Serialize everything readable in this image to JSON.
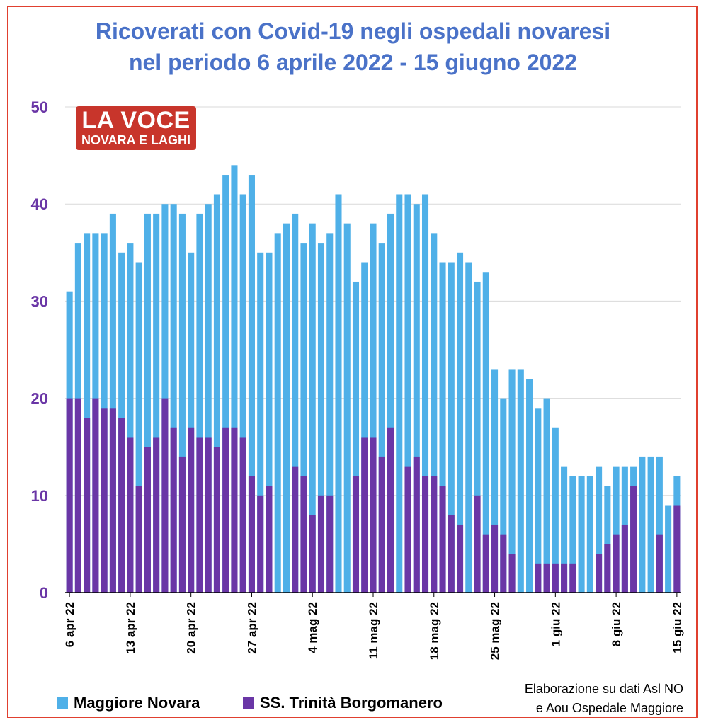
{
  "title_line1": "Ricoverati con Covid-19 negli ospedali novaresi",
  "title_line2": "nel periodo 6 aprile 2022 - 15 giugno 2022",
  "logo": {
    "line1": "LA VOCE",
    "line2": "NOVARA E LAGHI"
  },
  "source_line1": "Elaborazione su dati Asl NO",
  "source_line2": "e Aou Ospedale Maggiore",
  "colors": {
    "maggiore": "#4fb0e8",
    "trinita": "#6a36a6",
    "axis": "#6a36a6",
    "grid": "#d9d9d9"
  },
  "chart_data": {
    "type": "bar",
    "title": "Ricoverati con Covid-19 negli ospedali novaresi nel periodo 6 aprile 2022 - 15 giugno 2022",
    "ylim": [
      0,
      50
    ],
    "yticks": [
      0,
      10,
      20,
      30,
      40,
      50
    ],
    "grid": true,
    "legend_position": "bottom",
    "x_start": "2022-04-06",
    "x_end": "2022-06-15",
    "x_ticks": [
      "6 apr 22",
      "13 apr 22",
      "20 apr 22",
      "27 apr 22",
      "4 mag 22",
      "11 mag 22",
      "18 mag 22",
      "25 mag 22",
      "1 giu 22",
      "8 giu 22",
      "15 giu 22"
    ],
    "series": [
      {
        "name": "Maggiore Novara",
        "values": [
          31,
          36,
          37,
          37,
          37,
          39,
          35,
          36,
          34,
          39,
          39,
          40,
          40,
          39,
          35,
          39,
          40,
          41,
          43,
          44,
          41,
          43,
          35,
          35,
          37,
          38,
          39,
          36,
          38,
          36,
          37,
          41,
          38,
          32,
          34,
          38,
          36,
          39,
          41,
          41,
          40,
          41,
          37,
          34,
          34,
          35,
          34,
          32,
          33,
          23,
          20,
          23,
          23,
          22,
          19,
          20,
          17,
          13,
          12,
          12,
          12,
          13,
          11,
          13,
          13,
          13,
          14,
          14,
          14,
          9,
          12
        ]
      },
      {
        "name": "SS. Trinità Borgomanero",
        "values": [
          20,
          20,
          18,
          20,
          19,
          19,
          18,
          16,
          11,
          15,
          16,
          20,
          17,
          14,
          17,
          16,
          16,
          15,
          17,
          17,
          16,
          12,
          10,
          11,
          0,
          0,
          13,
          12,
          8,
          10,
          10,
          0,
          0,
          12,
          16,
          16,
          14,
          17,
          0,
          13,
          14,
          12,
          12,
          11,
          8,
          7,
          0,
          10,
          6,
          7,
          6,
          4,
          0,
          0,
          3,
          3,
          3,
          3,
          3,
          0,
          0,
          4,
          5,
          6,
          7,
          11,
          0,
          0,
          6,
          0,
          9
        ]
      }
    ]
  }
}
